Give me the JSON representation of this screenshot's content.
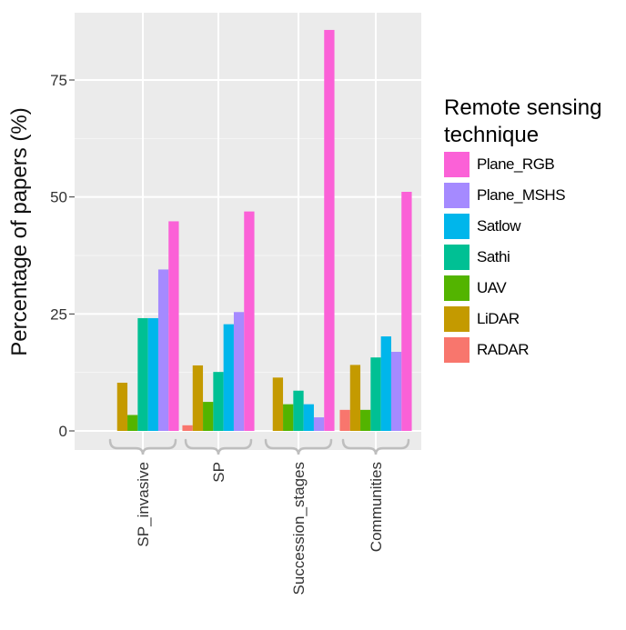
{
  "chart_data": {
    "type": "bar",
    "title": "",
    "xlabel": "",
    "ylabel": "Percentage of papers (%)",
    "ylim": [
      -4,
      88
    ],
    "yticks": [
      0,
      25,
      50,
      75
    ],
    "ytick_labels": [
      "0",
      "25",
      "50",
      "75"
    ],
    "categories": [
      "SP_invasive",
      "SP",
      "Succession_stages",
      "Communities"
    ],
    "grid": true,
    "legend_position": "right",
    "legend_title": "Remote sensing technique",
    "legend_title_lines": [
      "Remote sensing",
      "technique"
    ],
    "legend_order": [
      "Plane_RGB",
      "Plane_MSHS",
      "Satlow",
      "Sathi",
      "UAV",
      "LiDAR",
      "RADAR"
    ],
    "series": [
      {
        "name": "RADAR",
        "color": "#F8766D",
        "values": [
          0,
          1.2,
          0,
          4.5
        ]
      },
      {
        "name": "LiDAR",
        "color": "#C49A00",
        "values": [
          10.3,
          14,
          11.4,
          14.1
        ]
      },
      {
        "name": "UAV",
        "color": "#53B400",
        "values": [
          3.4,
          6.2,
          5.7,
          4.5
        ]
      },
      {
        "name": "Sathi",
        "color": "#00C094",
        "values": [
          24.1,
          12.6,
          8.6,
          15.7
        ]
      },
      {
        "name": "Satlow",
        "color": "#00B6EB",
        "values": [
          24.1,
          22.8,
          5.7,
          20.2
        ]
      },
      {
        "name": "Plane_MSHS",
        "color": "#A58AFF",
        "values": [
          34.5,
          25.4,
          2.9,
          16.9
        ]
      },
      {
        "name": "Plane_RGB",
        "color": "#FB61D7",
        "values": [
          44.8,
          46.9,
          85.7,
          51.1
        ]
      }
    ]
  }
}
